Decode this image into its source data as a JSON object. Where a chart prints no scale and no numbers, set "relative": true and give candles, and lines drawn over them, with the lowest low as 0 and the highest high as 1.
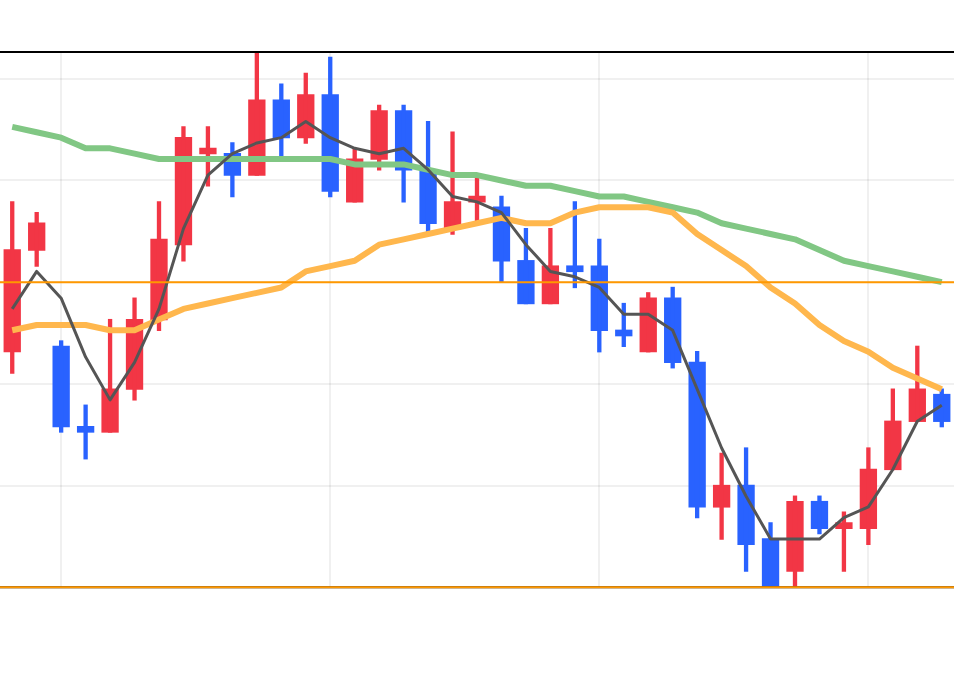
{
  "chart_data": {
    "type": "candlestick",
    "relative": true,
    "grid": true,
    "categories": [
      null,
      null,
      null,
      null,
      null,
      null,
      null,
      null,
      null,
      null,
      null,
      null,
      null,
      null,
      null,
      null,
      null,
      null,
      null,
      null,
      null,
      null,
      null,
      null,
      null,
      null,
      null,
      null,
      null,
      null,
      null,
      null,
      null,
      null,
      null,
      null,
      null,
      null,
      null
    ],
    "ohlc": [
      [
        0.44,
        0.72,
        0.4,
        0.63
      ],
      [
        0.63,
        0.7,
        0.6,
        0.68
      ],
      [
        0.45,
        0.46,
        0.29,
        0.3
      ],
      [
        0.3,
        0.34,
        0.24,
        0.29
      ],
      [
        0.29,
        0.5,
        0.29,
        0.37
      ],
      [
        0.37,
        0.54,
        0.35,
        0.5
      ],
      [
        0.5,
        0.72,
        0.48,
        0.65
      ],
      [
        0.64,
        0.86,
        0.61,
        0.84
      ],
      [
        0.81,
        0.86,
        0.75,
        0.82
      ],
      [
        0.81,
        0.83,
        0.73,
        0.77
      ],
      [
        0.77,
        1.0,
        0.77,
        0.91
      ],
      [
        0.91,
        0.94,
        0.8,
        0.84
      ],
      [
        0.84,
        0.96,
        0.83,
        0.92
      ],
      [
        0.92,
        0.99,
        0.73,
        0.74
      ],
      [
        0.72,
        0.82,
        0.72,
        0.8
      ],
      [
        0.8,
        0.9,
        0.78,
        0.89
      ],
      [
        0.89,
        0.9,
        0.72,
        0.78
      ],
      [
        0.78,
        0.87,
        0.66,
        0.68
      ],
      [
        0.67,
        0.85,
        0.66,
        0.72
      ],
      [
        0.72,
        0.77,
        0.68,
        0.73
      ],
      [
        0.71,
        0.73,
        0.57,
        0.61
      ],
      [
        0.61,
        0.67,
        0.53,
        0.53
      ],
      [
        0.53,
        0.67,
        0.53,
        0.6
      ],
      [
        0.6,
        0.72,
        0.56,
        0.59
      ],
      [
        0.6,
        0.65,
        0.44,
        0.48
      ],
      [
        0.48,
        0.53,
        0.45,
        0.47
      ],
      [
        0.44,
        0.55,
        0.44,
        0.54
      ],
      [
        0.54,
        0.56,
        0.41,
        0.42
      ],
      [
        0.42,
        0.44,
        0.13,
        0.15
      ],
      [
        0.15,
        0.25,
        0.09,
        0.19
      ],
      [
        0.19,
        0.26,
        0.03,
        0.08
      ],
      [
        0.09,
        0.12,
        0,
        0
      ],
      [
        0.03,
        0.17,
        0,
        0.16
      ],
      [
        0.16,
        0.17,
        0.1,
        0.11
      ],
      [
        0.11,
        0.14,
        0.03,
        0.12
      ],
      [
        0.11,
        0.26,
        0.08,
        0.22
      ],
      [
        0.22,
        0.37,
        0.22,
        0.31
      ],
      [
        0.31,
        0.45,
        0.31,
        0.37
      ],
      [
        0.36,
        0.37,
        0.3,
        0.31
      ]
    ],
    "colors": [
      "#f23645",
      "#f23645",
      "#2962ff",
      "#2962ff",
      "#f23645",
      "#f23645",
      "#f23645",
      "#f23645",
      "#f23645",
      "#2962ff",
      "#f23645",
      "#2962ff",
      "#f23645",
      "#2962ff",
      "#f23645",
      "#f23645",
      "#2962ff",
      "#2962ff",
      "#f23645",
      "#f23645",
      "#2962ff",
      "#2962ff",
      "#f23645",
      "#2962ff",
      "#2962ff",
      "#2962ff",
      "#f23645",
      "#2962ff",
      "#2962ff",
      "#f23645",
      "#2962ff",
      "#2962ff",
      "#f23645",
      "#2962ff",
      "#f23645",
      "#f23645",
      "#f23645",
      "#f23645",
      "#2962ff"
    ],
    "series": [
      {
        "type": "line",
        "color": "#555555",
        "values": [
          0.52,
          0.59,
          0.54,
          0.43,
          0.35,
          0.42,
          0.52,
          0.67,
          0.77,
          0.81,
          0.83,
          0.84,
          0.87,
          0.84,
          0.82,
          0.81,
          0.82,
          0.78,
          0.73,
          0.72,
          0.7,
          0.64,
          0.59,
          0.58,
          0.56,
          0.51,
          0.51,
          0.48,
          0.37,
          0.26,
          0.17,
          0.09,
          0.09,
          0.09,
          0.13,
          0.15,
          0.22,
          0.31,
          0.34
        ]
      },
      {
        "type": "line",
        "color": "#ffb74d",
        "values": [
          0.48,
          0.49,
          0.49,
          0.49,
          0.48,
          0.48,
          0.5,
          0.52,
          0.53,
          0.54,
          0.55,
          0.56,
          0.59,
          0.6,
          0.61,
          0.64,
          0.65,
          0.66,
          0.67,
          0.68,
          0.69,
          0.68,
          0.68,
          0.7,
          0.71,
          0.71,
          0.71,
          0.7,
          0.66,
          0.63,
          0.6,
          0.56,
          0.53,
          0.49,
          0.46,
          0.44,
          0.41,
          0.39,
          0.37
        ]
      },
      {
        "type": "line",
        "color": "#81c784",
        "values": [
          0.86,
          0.85,
          0.84,
          0.82,
          0.82,
          0.81,
          0.8,
          0.8,
          0.8,
          0.8,
          0.8,
          0.8,
          0.8,
          0.8,
          0.79,
          0.79,
          0.79,
          0.78,
          0.77,
          0.77,
          0.76,
          0.75,
          0.75,
          0.74,
          0.73,
          0.73,
          0.72,
          0.71,
          0.7,
          0.68,
          0.67,
          0.66,
          0.65,
          0.63,
          0.61,
          0.6,
          0.59,
          0.58,
          0.57
        ]
      }
    ],
    "ref_lines": [
      {
        "axis": "y",
        "value": 0.57,
        "color": "#ff9800"
      },
      {
        "axis": "y",
        "value": 0,
        "color": "#ff9800"
      }
    ]
  }
}
